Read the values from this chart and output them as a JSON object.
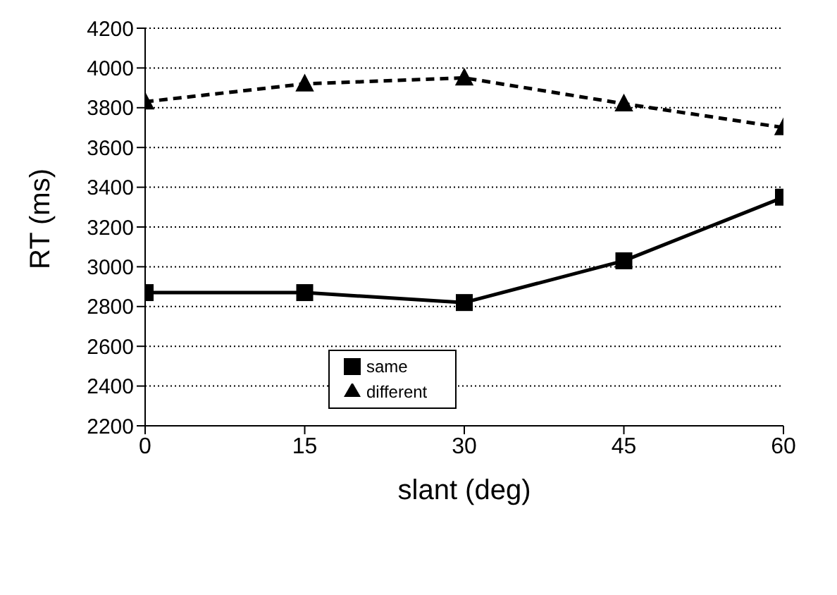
{
  "chart_data": {
    "type": "line",
    "xlabel": "slant (deg)",
    "ylabel": "RT (ms)",
    "x": [
      0,
      15,
      30,
      45,
      60
    ],
    "xlim": [
      0,
      60
    ],
    "xticks": [
      0,
      15,
      30,
      45,
      60
    ],
    "ylim": [
      2200,
      4200
    ],
    "yticks": [
      2200,
      2400,
      2600,
      2800,
      3000,
      3200,
      3400,
      3600,
      3800,
      4000,
      4200
    ],
    "grid": "y",
    "legend": "bottom",
    "series": [
      {
        "name": "same",
        "color": "#000000",
        "marker": "square",
        "line_style": "solid",
        "values": [
          2870,
          2870,
          2820,
          3030,
          3350
        ]
      },
      {
        "name": "different",
        "color": "#000000",
        "marker": "triangle",
        "line_style": "dashed",
        "values": [
          3830,
          3920,
          3950,
          3820,
          3700
        ]
      }
    ]
  }
}
